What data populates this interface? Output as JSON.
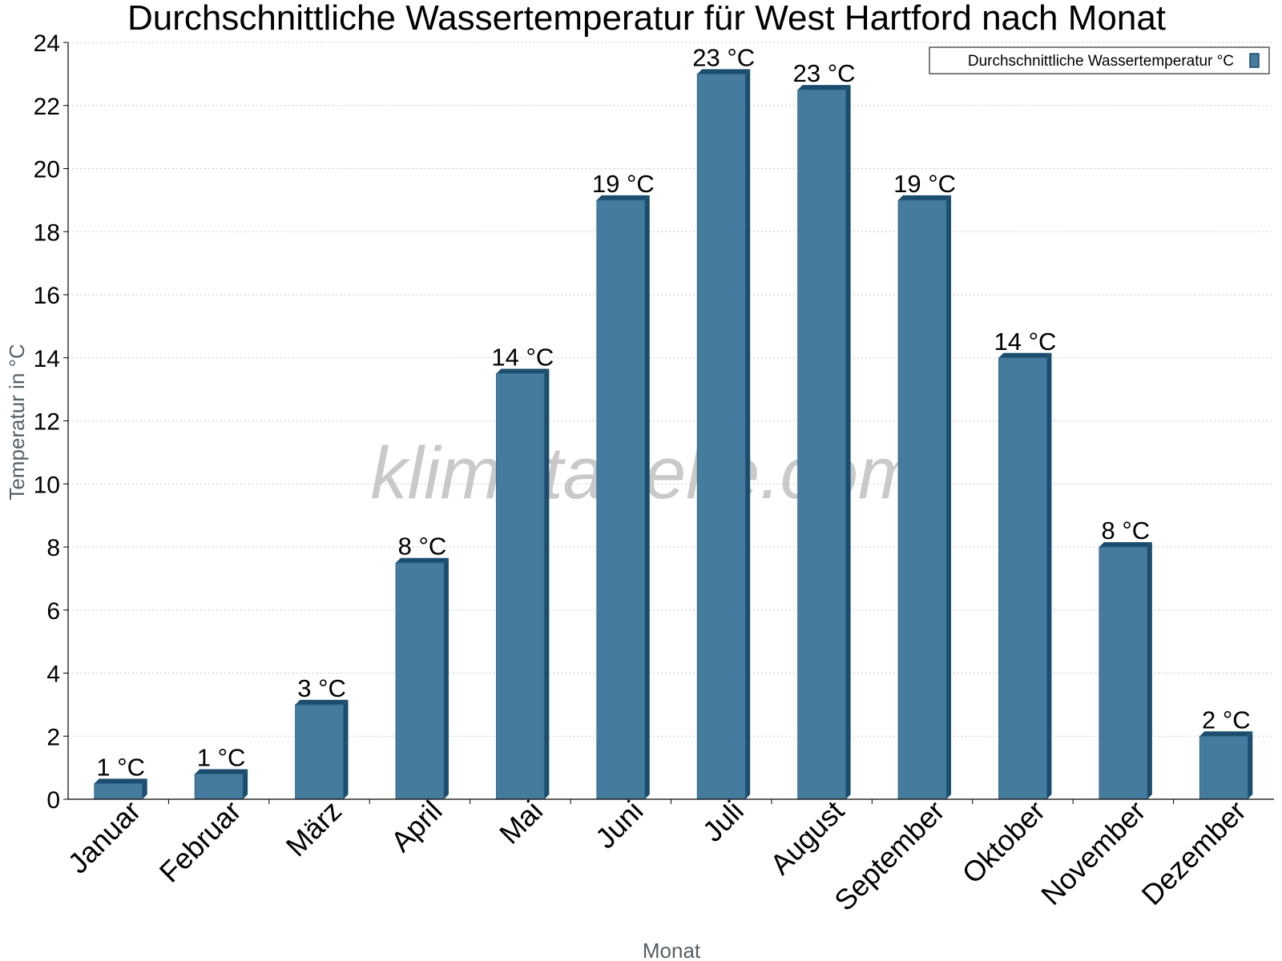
{
  "chart_data": {
    "type": "bar",
    "title": "Durchschnittliche Wassertemperatur für West Hartford nach Monat",
    "xlabel": "Monat",
    "ylabel": "Temperatur in °C",
    "ylim": [
      0,
      24
    ],
    "yticks": [
      0,
      2,
      4,
      6,
      8,
      10,
      12,
      14,
      16,
      18,
      20,
      22,
      24
    ],
    "grid": true,
    "legend_position": "top-right",
    "categories": [
      "Januar",
      "Februar",
      "März",
      "April",
      "Mai",
      "Juni",
      "Juli",
      "August",
      "September",
      "Oktober",
      "November",
      "Dezember"
    ],
    "series": [
      {
        "name": "Durchschnittliche Wassertemperatur °C",
        "color": "#457b9d",
        "values": [
          0.5,
          0.8,
          3.0,
          7.5,
          13.5,
          19.0,
          23.0,
          22.5,
          19.0,
          14.0,
          8.0,
          2.0
        ],
        "labels": [
          "1 °C",
          "1 °C",
          "3 °C",
          "8 °C",
          "14 °C",
          "19 °C",
          "23 °C",
          "23 °C",
          "19 °C",
          "14 °C",
          "8 °C",
          "2 °C"
        ]
      }
    ],
    "watermark": "klimatabelle.com"
  }
}
